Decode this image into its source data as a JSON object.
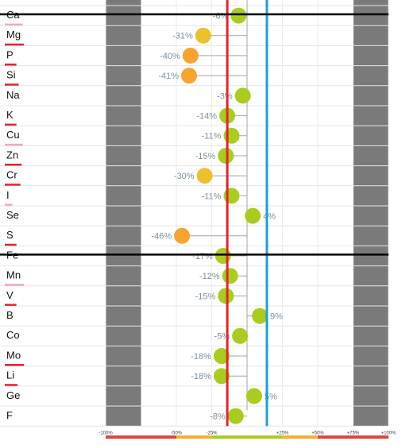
{
  "chart_data": {
    "type": "lollipop",
    "categories": [
      "Ca",
      "Mg",
      "P",
      "Si",
      "Na",
      "K",
      "Cu",
      "Zn",
      "Cr",
      "I",
      "Se",
      "S",
      "Fe",
      "Mn",
      "V",
      "B",
      "Co",
      "Mo",
      "Li",
      "Ge",
      "F"
    ],
    "values": [
      -6,
      -31,
      -40,
      -41,
      -3,
      -14,
      -11,
      -15,
      -30,
      -11,
      4,
      -46,
      -17,
      -12,
      -15,
      9,
      -5,
      -18,
      -18,
      5,
      -8
    ],
    "value_labels": [
      "-6%",
      "-31%",
      "-40%",
      "-41%",
      "-3%",
      "-14%",
      "-11%",
      "-15%",
      "-30%",
      "-11%",
      "4%",
      "-46%",
      "-17%",
      "-12%",
      "-15%",
      "9%",
      "-5%",
      "-18%",
      "-18%",
      "5%",
      "-8%"
    ],
    "colors": [
      "#a9cc1f",
      "#ecc22c",
      "#f7a32f",
      "#f7a32f",
      "#a9cc1f",
      "#a9cc1f",
      "#a9cc1f",
      "#a9cc1f",
      "#ecc22c",
      "#a9cc1f",
      "#a9cc1f",
      "#f7a32f",
      "#a9cc1f",
      "#a9cc1f",
      "#a9cc1f",
      "#a9cc1f",
      "#a9cc1f",
      "#a9cc1f",
      "#a9cc1f",
      "#a9cc1f",
      "#a9cc1f"
    ],
    "label_underline": [
      "#f4a9b8",
      "#e0242b",
      "#e0242b",
      "#e0242b",
      null,
      "#e0242b",
      "#f4a9b8",
      "#e0242b",
      "#e0242b",
      "#f4a9b8",
      null,
      "#e0242b",
      null,
      "#f4a9b8",
      "#e0242b",
      null,
      null,
      "#e0242b",
      "#e0242b",
      null,
      null
    ],
    "xlim": [
      -100,
      100
    ],
    "xticks": [
      {
        "value": -100,
        "label": "-100%"
      },
      {
        "value": -50,
        "label": "-50%"
      },
      {
        "value": -25,
        "label": "-25%"
      },
      {
        "value": 25,
        "label": "+25%"
      },
      {
        "value": 50,
        "label": "+50%"
      },
      {
        "value": 75,
        "label": "+75%"
      },
      {
        "value": 100,
        "label": "+100%"
      }
    ],
    "shaded_ranges": [
      [
        -100,
        -75
      ],
      [
        75,
        100
      ]
    ],
    "reference_lines": [
      {
        "value": -14,
        "color": "#e0242b"
      },
      {
        "value": 14,
        "color": "#1aa0dc"
      }
    ],
    "color_bands": [
      {
        "from": -100,
        "to": -50,
        "color": "#e0443c"
      },
      {
        "from": -50,
        "to": -25,
        "color": "#f2b02e"
      },
      {
        "from": -25,
        "to": 25,
        "color": "#a9cc1f"
      },
      {
        "from": 25,
        "to": 50,
        "color": "#f2b02e"
      },
      {
        "from": 50,
        "to": 100,
        "color": "#e0443c"
      }
    ]
  }
}
